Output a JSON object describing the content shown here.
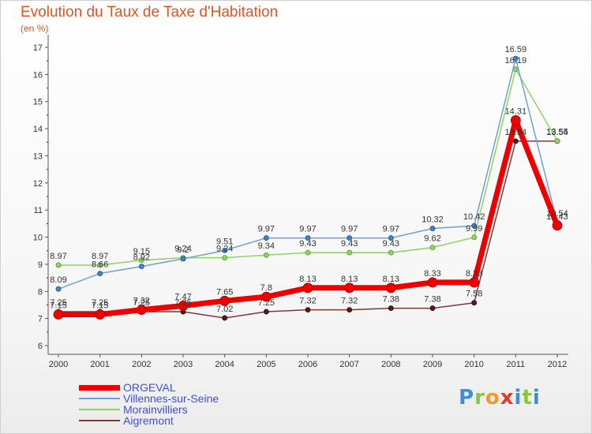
{
  "header": {
    "title": "Evolution du Taux de Taxe d'Habitation",
    "subtitle": "(en %)"
  },
  "logo": {
    "text": "Proxiti"
  },
  "colors": {
    "ORGEVAL": "#ee0000",
    "Villennes-sur-Seine": "#6f9fd8",
    "Morainvilliers": "#8fd464",
    "Aigremont": "#7a3a3a"
  },
  "chart_data": {
    "type": "line",
    "title": "Evolution du Taux de Taxe d'Habitation",
    "subtitle": "(en %)",
    "xlabel": "",
    "ylabel": "",
    "x": [
      "2000",
      "2001",
      "2002",
      "2003",
      "2004",
      "2005",
      "2006",
      "2007",
      "2008",
      "2009",
      "2010",
      "2011",
      "2012"
    ],
    "yticks": [
      "6",
      "7",
      "8",
      "9",
      "10",
      "11",
      "12",
      "13",
      "14",
      "15",
      "16",
      "17"
    ],
    "ylim": [
      6,
      17
    ],
    "grid": false,
    "legend": "bottom-left",
    "series": [
      {
        "name": "ORGEVAL",
        "values": [
          7.15,
          7.15,
          7.32,
          7.47,
          7.65,
          7.8,
          8.13,
          8.13,
          8.13,
          8.33,
          8.33,
          14.31,
          10.43
        ],
        "labels": [
          "7.15",
          "7.15",
          "7.32",
          "7.47",
          "7.65",
          "7.8",
          "8.13",
          "8.13",
          "8.13",
          "8.33",
          "8.33",
          "14.31",
          "10.43"
        ]
      },
      {
        "name": "Villennes-sur-Seine",
        "values": [
          8.09,
          8.66,
          8.92,
          9.2,
          9.51,
          9.97,
          9.97,
          9.97,
          9.97,
          10.32,
          10.42,
          16.59,
          10.54
        ],
        "labels": [
          "8.09",
          "8.66",
          "8.92",
          "9.2",
          "9.51",
          "9.97",
          "9.97",
          "9.97",
          "9.97",
          "10.32",
          "10.42",
          "16.59",
          "10.54"
        ]
      },
      {
        "name": "Morainvilliers",
        "values": [
          8.97,
          8.97,
          9.15,
          9.24,
          9.24,
          9.34,
          9.43,
          9.43,
          9.43,
          9.62,
          9.99,
          16.19,
          13.55
        ],
        "labels": [
          "8.97",
          "8.97",
          "9.15",
          "9.24",
          "9.24",
          "9.34",
          "9.43",
          "9.43",
          "9.43",
          "9.62",
          "9.99",
          "16.19",
          "13.55"
        ]
      },
      {
        "name": "Aigremont",
        "values": [
          7.25,
          7.25,
          7.25,
          7.25,
          7.02,
          7.25,
          7.32,
          7.32,
          7.38,
          7.38,
          7.58,
          13.54,
          13.54
        ],
        "labels": [
          "7.25",
          "7.25",
          "7.25",
          "7.25",
          "7.02",
          "7.25",
          "7.32",
          "7.32",
          "7.38",
          "7.38",
          "7.58",
          "13.54",
          "13.54"
        ]
      }
    ]
  }
}
